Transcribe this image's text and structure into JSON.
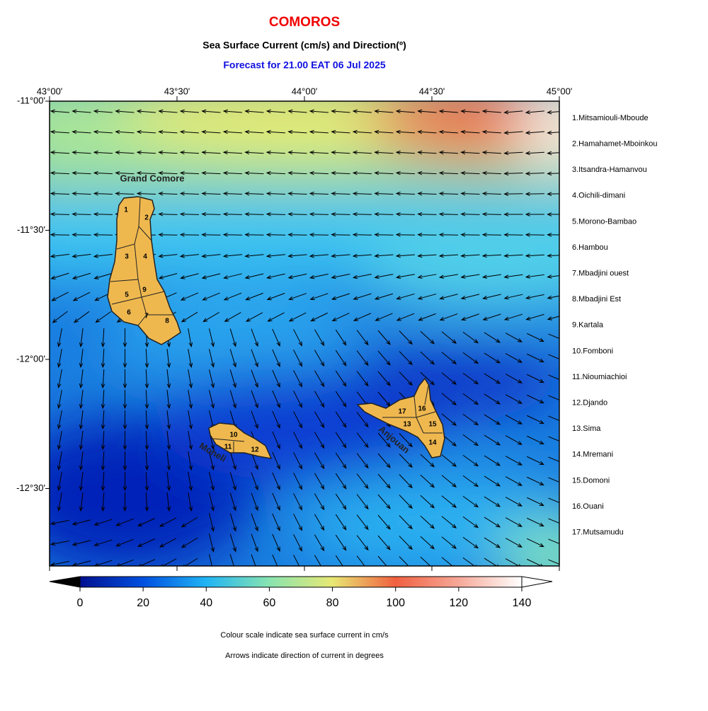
{
  "title": "COMOROS",
  "subtitle": "Sea Surface Current (cm/s) and Direction(º)",
  "forecast": "Forecast for  21.00 EAT 06 Jul 2025",
  "map": {
    "xlim": [
      43,
      45
    ],
    "ylim": [
      -12.8,
      -11
    ],
    "xticks": [
      {
        "value": 43,
        "label": "43°00'"
      },
      {
        "value": 43.5,
        "label": "43°30'"
      },
      {
        "value": 44,
        "label": "44°00'"
      },
      {
        "value": 44.5,
        "label": "44°30'"
      },
      {
        "value": 45,
        "label": "45°00'"
      }
    ],
    "yticks": [
      {
        "value": -11,
        "label": "-11°00'"
      },
      {
        "value": -11.5,
        "label": "-11°30'"
      },
      {
        "value": -12,
        "label": "-12°00'"
      },
      {
        "value": -12.5,
        "label": "-12°30'"
      }
    ],
    "islands": [
      "Grand Comore",
      "Moheli",
      "Anjouan"
    ],
    "region_numbers": [
      "1",
      "2",
      "3",
      "4",
      "5",
      "6",
      "7",
      "8",
      "9",
      "10",
      "11",
      "12",
      "13",
      "14",
      "15",
      "16",
      "17"
    ]
  },
  "regions": [
    "1.Mitsamiouli-Mboude",
    "2.Hamahamet-Mboinkou",
    "3.Itsandra-Hamanvou",
    "4.Oichili-dimani",
    "5.Morono-Bambao",
    "6.Hambou",
    "7.Mbadjini ouest",
    "8.Mbadjini Est",
    "9.Kartala",
    "10.Fomboni",
    "11.Nioumiachioi",
    "12.Djando",
    "13.Sima",
    "14.Mremani",
    "15.Domoni",
    "16.Ouani",
    "17.Mutsamudu"
  ],
  "colorbar": {
    "lim": [
      0,
      140
    ],
    "ticks": [
      0,
      20,
      40,
      60,
      80,
      100,
      120,
      140
    ]
  },
  "notes": [
    "Colour scale indicate sea surface current in cm/s",
    "Arrows indicate direction of current in degrees"
  ]
}
